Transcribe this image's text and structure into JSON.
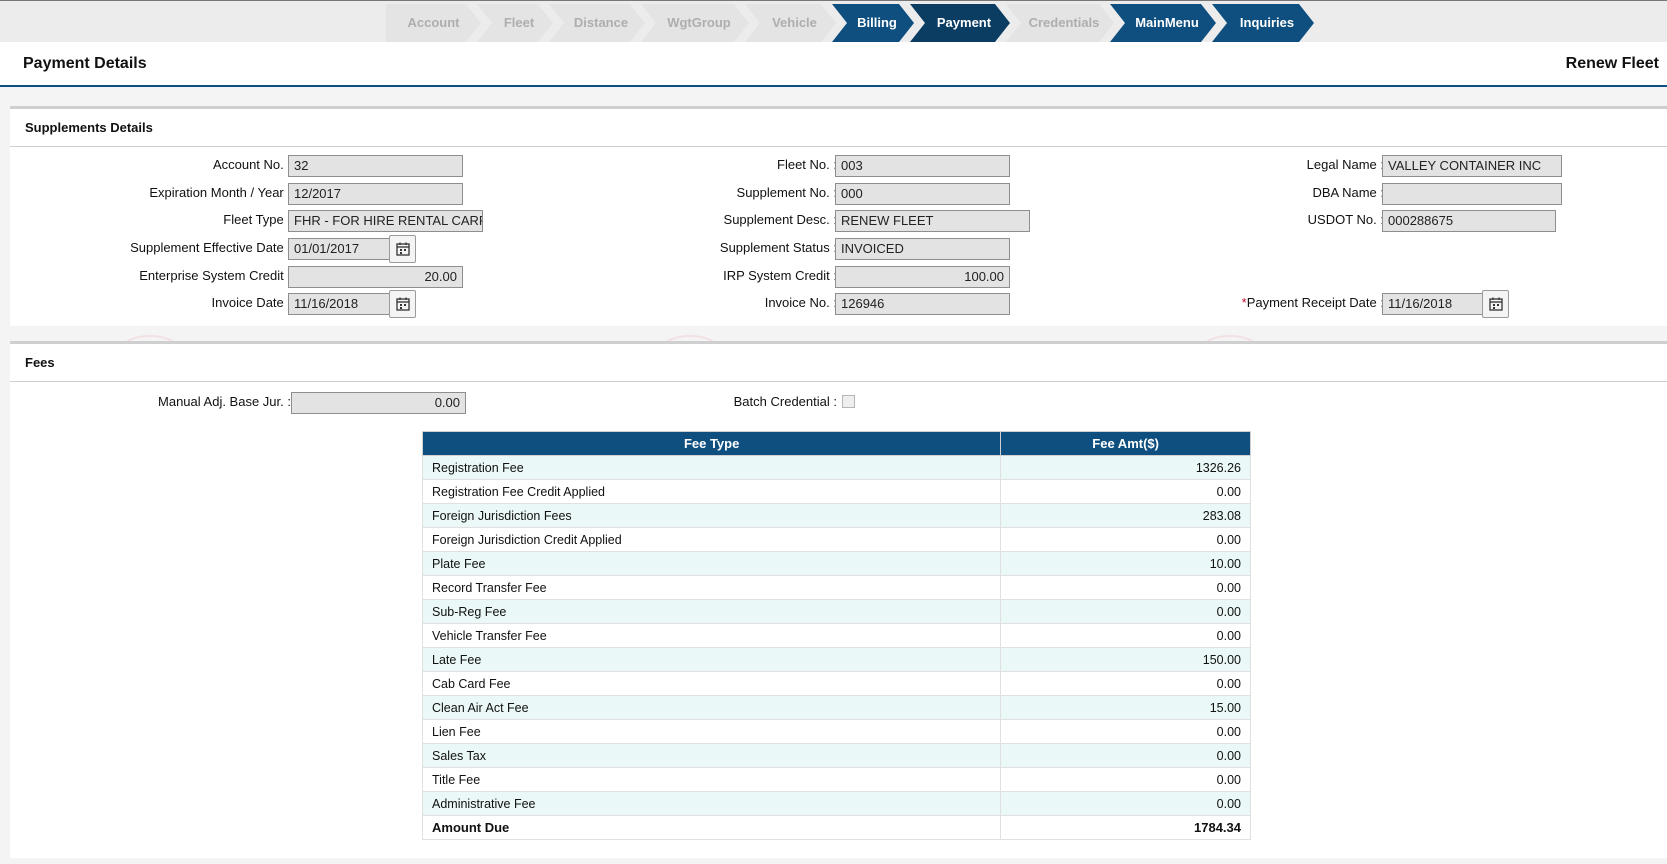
{
  "wizard": {
    "steps": [
      {
        "label": "Account",
        "state": "off"
      },
      {
        "label": "Fleet",
        "state": "off"
      },
      {
        "label": "Distance",
        "state": "off"
      },
      {
        "label": "WgtGroup",
        "state": "off"
      },
      {
        "label": "Vehicle",
        "state": "off"
      },
      {
        "label": "Billing",
        "state": "on"
      },
      {
        "label": "Payment",
        "state": "current"
      },
      {
        "label": "Credentials",
        "state": "off"
      },
      {
        "label": "MainMenu",
        "state": "on"
      },
      {
        "label": "Inquiries",
        "state": "on"
      }
    ]
  },
  "header": {
    "title": "Payment Details",
    "action": "Renew Fleet"
  },
  "supplements": {
    "title": "Supplements Details",
    "account_no": {
      "label": "Account No.",
      "value": "32"
    },
    "expiration": {
      "label": "Expiration Month / Year",
      "value": "12/2017"
    },
    "fleet_type": {
      "label": "Fleet Type",
      "value": "FHR - FOR HIRE RENTAL CARRIER"
    },
    "supp_effective_date": {
      "label": "Supplement Effective Date",
      "value": "01/01/2017"
    },
    "enterprise_credit": {
      "label": "Enterprise System Credit",
      "value": "20.00"
    },
    "invoice_date": {
      "label": "Invoice Date",
      "value": "11/16/2018"
    },
    "fleet_no": {
      "label": "Fleet No.",
      "value": "003"
    },
    "supplement_no": {
      "label": "Supplement No.",
      "value": "000"
    },
    "supplement_desc": {
      "label": "Supplement Desc.",
      "value": "RENEW FLEET"
    },
    "supplement_status": {
      "label": "Supplement Status",
      "value": "INVOICED"
    },
    "irp_credit": {
      "label": "IRP System Credit",
      "value": "100.00"
    },
    "invoice_no": {
      "label": "Invoice No.",
      "value": "126946"
    },
    "legal_name": {
      "label": "Legal Name",
      "value": "VALLEY CONTAINER INC"
    },
    "dba_name": {
      "label": "DBA Name",
      "value": ""
    },
    "usdot_no": {
      "label": "USDOT No.",
      "value": "000288675"
    },
    "payment_receipt_date": {
      "required_mark": "*",
      "label": "Payment Receipt Date",
      "value": "11/16/2018"
    }
  },
  "fees": {
    "title": "Fees",
    "manual_adj": {
      "label": "Manual Adj. Base Jur.",
      "value": "0.00"
    },
    "batch_credential": {
      "label": "Batch Credential",
      "checked": false
    },
    "table": {
      "columns": [
        "Fee Type",
        "Fee Amt($)"
      ],
      "rows": [
        {
          "type": "Registration Fee",
          "amount": "1326.26"
        },
        {
          "type": "Registration Fee Credit Applied",
          "amount": "0.00"
        },
        {
          "type": "Foreign Jurisdiction Fees",
          "amount": "283.08"
        },
        {
          "type": "Foreign Jurisdiction Credit Applied",
          "amount": "0.00"
        },
        {
          "type": "Plate Fee",
          "amount": "10.00"
        },
        {
          "type": "Record Transfer Fee",
          "amount": "0.00"
        },
        {
          "type": "Sub-Reg Fee",
          "amount": "0.00"
        },
        {
          "type": "Vehicle Transfer Fee",
          "amount": "0.00"
        },
        {
          "type": "Late Fee",
          "amount": "150.00"
        },
        {
          "type": "Cab Card Fee",
          "amount": "0.00"
        },
        {
          "type": "Clean Air Act Fee",
          "amount": "15.00"
        },
        {
          "type": "Lien Fee",
          "amount": "0.00"
        },
        {
          "type": "Sales Tax",
          "amount": "0.00"
        },
        {
          "type": "Title Fee",
          "amount": "0.00"
        },
        {
          "type": "Administrative Fee",
          "amount": "0.00"
        }
      ],
      "total": {
        "type": "Amount Due",
        "amount": "1784.34"
      }
    }
  },
  "colors": {
    "brand": "#0e4f7f",
    "current_step": "#0b3d63",
    "row_alt": "#eaf8f7",
    "required": "#c8102e"
  }
}
